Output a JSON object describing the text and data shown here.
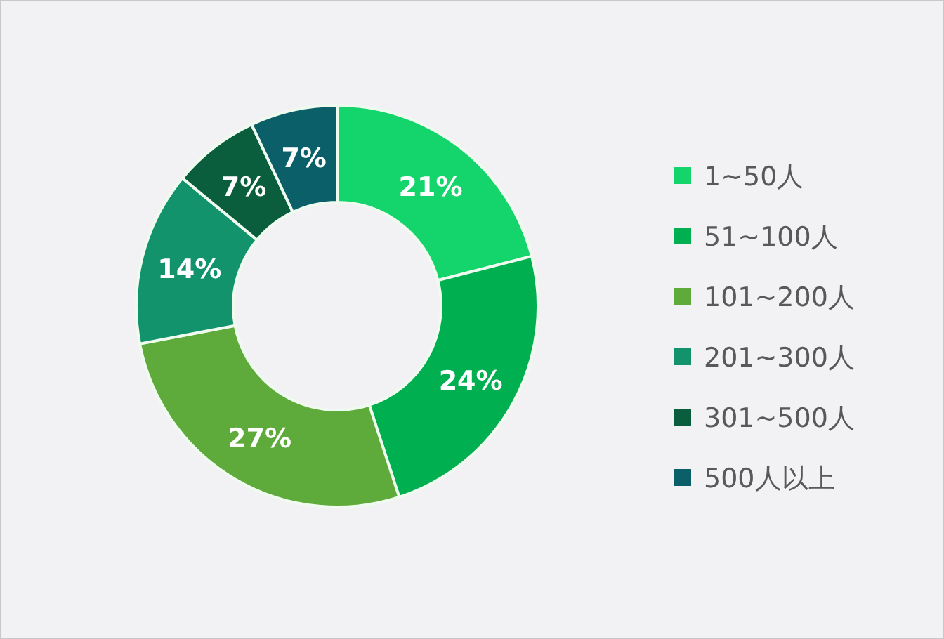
{
  "chart_data": {
    "type": "donut",
    "categories": [
      "1~50人",
      "51~100人",
      "101~200人",
      "201~300人",
      "301~500人",
      "500人以上"
    ],
    "values": [
      21,
      24,
      27,
      14,
      7,
      7
    ],
    "value_labels": [
      "21%",
      "24%",
      "27%",
      "14%",
      "7%",
      "7%"
    ],
    "colors": [
      "#14d46c",
      "#00b050",
      "#5eaa3a",
      "#12936c",
      "#0a5e3e",
      "#0a5f68"
    ],
    "legend": "right"
  }
}
